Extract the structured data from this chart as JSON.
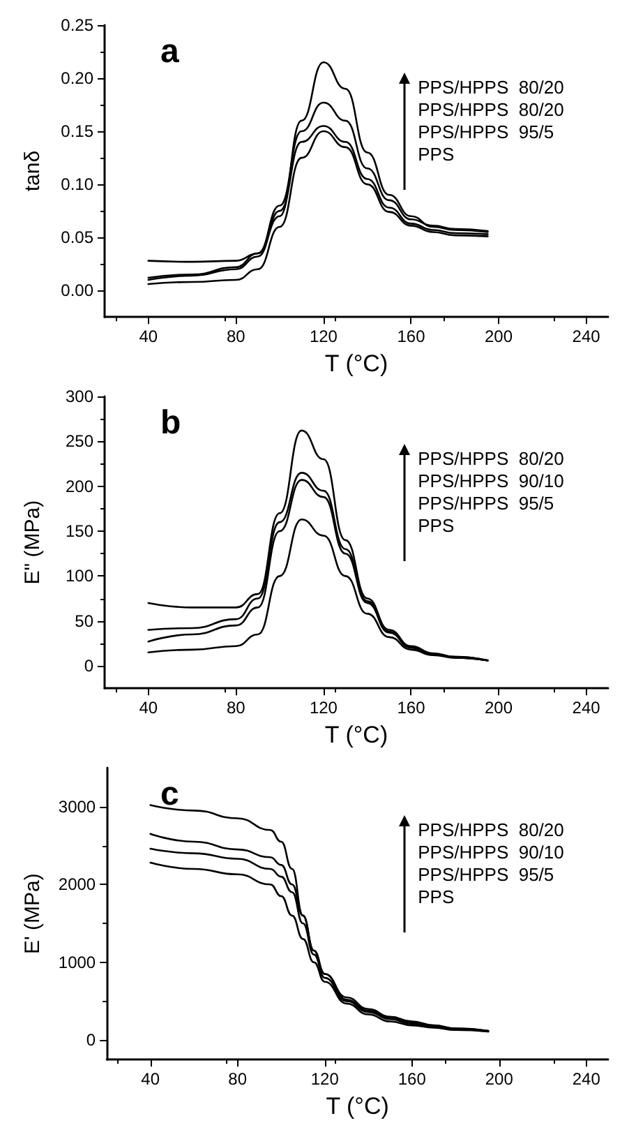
{
  "chart_data": [
    {
      "type": "line",
      "title": "a",
      "xlabel": "T (°C)",
      "ylabel": "tanδ",
      "xlim": [
        20,
        250
      ],
      "xticks": [
        40,
        80,
        120,
        160,
        200,
        240
      ],
      "ylim": [
        -0.025,
        0.25
      ],
      "yticks": [
        {
          "value": 0,
          "label": "0.00"
        },
        {
          "value": 0.05,
          "label": "0.05"
        },
        {
          "value": 0.1,
          "label": "0.10"
        },
        {
          "value": 0.15,
          "label": "0.15"
        },
        {
          "value": 0.2,
          "label": "0.20"
        },
        {
          "value": 0.25,
          "label": "0.25"
        }
      ],
      "annotations": [
        "PPS/HPPS  80/20",
        "PPS/HPPS  80/20",
        "PPS/HPPS  95/5",
        "PPS"
      ],
      "x": [
        40,
        60,
        80,
        90,
        100,
        110,
        120,
        130,
        140,
        150,
        160,
        170,
        180,
        195
      ],
      "series": [
        {
          "color": "#000000",
          "values": [
            0.028,
            0.027,
            0.028,
            0.035,
            0.07,
            0.16,
            0.215,
            0.19,
            0.13,
            0.09,
            0.07,
            0.06,
            0.057,
            0.055
          ]
        },
        {
          "color": "#000000",
          "values": [
            0.012,
            0.015,
            0.022,
            0.035,
            0.08,
            0.15,
            0.177,
            0.16,
            0.115,
            0.085,
            0.067,
            0.061,
            0.058,
            0.056
          ]
        },
        {
          "color": "#000000",
          "values": [
            0.01,
            0.014,
            0.02,
            0.032,
            0.075,
            0.14,
            0.155,
            0.14,
            0.105,
            0.078,
            0.063,
            0.057,
            0.054,
            0.053
          ]
        },
        {
          "color": "#000000",
          "values": [
            0.006,
            0.008,
            0.01,
            0.02,
            0.06,
            0.125,
            0.15,
            0.135,
            0.1,
            0.074,
            0.061,
            0.055,
            0.052,
            0.051
          ]
        }
      ]
    },
    {
      "type": "line",
      "title": "b",
      "xlabel": "T (°C)",
      "ylabel": "E\" (MPa)",
      "xlim": [
        20,
        250
      ],
      "xticks": [
        40,
        80,
        120,
        160,
        200,
        240
      ],
      "ylim": [
        -25,
        300
      ],
      "yticks": [
        0,
        50,
        100,
        150,
        200,
        250,
        300
      ],
      "annotations": [
        "PPS/HPPS  80/20",
        "PPS/HPPS  90/10",
        "PPS/HPPS  95/5",
        "PPS"
      ],
      "x": [
        40,
        60,
        80,
        90,
        100,
        110,
        120,
        130,
        140,
        150,
        160,
        170,
        180,
        195
      ],
      "series": [
        {
          "color": "#000000",
          "values": [
            70,
            65,
            65,
            80,
            170,
            262,
            230,
            140,
            75,
            40,
            22,
            14,
            10,
            6
          ]
        },
        {
          "color": "#000000",
          "values": [
            40,
            42,
            52,
            75,
            160,
            215,
            195,
            130,
            72,
            38,
            21,
            13,
            10,
            6
          ]
        },
        {
          "color": "#000000",
          "values": [
            27,
            35,
            45,
            65,
            150,
            207,
            188,
            125,
            70,
            37,
            20,
            13,
            9,
            6
          ]
        },
        {
          "color": "#000000",
          "values": [
            15,
            18,
            22,
            35,
            100,
            163,
            145,
            100,
            58,
            32,
            18,
            12,
            9,
            6
          ]
        }
      ]
    },
    {
      "type": "line",
      "title": "c",
      "xlabel": "T (°C)",
      "ylabel": "E' (MPa)",
      "xlim": [
        20,
        250
      ],
      "xticks": [
        40,
        80,
        120,
        160,
        200,
        240
      ],
      "ylim": [
        -250,
        3500
      ],
      "yticks": [
        0,
        1000,
        2000,
        3000
      ],
      "annotations": [
        "PPS/HPPS  80/20",
        "PPS/HPPS  90/10",
        "PPS/HPPS  95/5",
        "PPS"
      ],
      "x": [
        40,
        60,
        80,
        95,
        100,
        105,
        110,
        115,
        120,
        130,
        140,
        150,
        160,
        170,
        180,
        195
      ],
      "series": [
        {
          "color": "#000000",
          "values": [
            3020,
            2950,
            2850,
            2700,
            2550,
            2200,
            1600,
            1150,
            850,
            550,
            400,
            300,
            240,
            190,
            150,
            120
          ]
        },
        {
          "color": "#000000",
          "values": [
            2650,
            2550,
            2450,
            2350,
            2250,
            2000,
            1600,
            1150,
            850,
            520,
            380,
            290,
            230,
            180,
            150,
            120
          ]
        },
        {
          "color": "#000000",
          "values": [
            2460,
            2400,
            2330,
            2200,
            2100,
            1900,
            1500,
            1100,
            800,
            500,
            360,
            270,
            210,
            170,
            140,
            110
          ]
        },
        {
          "color": "#000000",
          "values": [
            2280,
            2200,
            2130,
            2000,
            1850,
            1600,
            1300,
            1000,
            750,
            470,
            330,
            240,
            190,
            160,
            130,
            110
          ]
        }
      ]
    }
  ]
}
